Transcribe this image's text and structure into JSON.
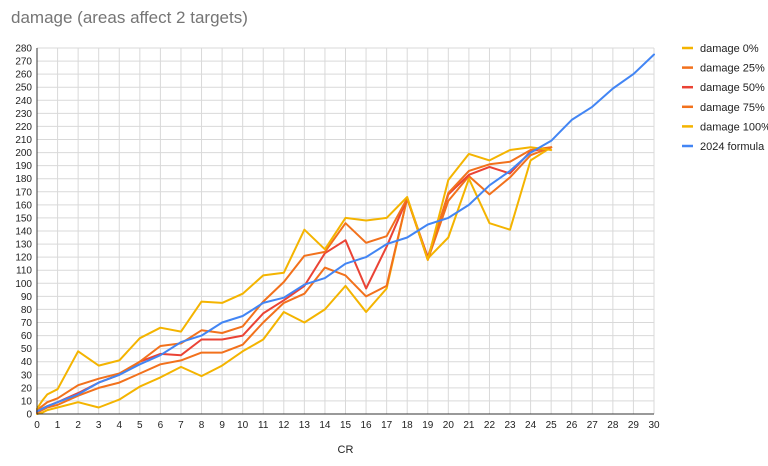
{
  "chart_data": {
    "type": "line",
    "title": "damage (areas affect 2 targets)",
    "xlabel": "CR",
    "ylabel": "",
    "xlim": [
      0,
      30
    ],
    "ylim": [
      0,
      280
    ],
    "x_ticks": [
      0,
      1,
      2,
      3,
      4,
      5,
      6,
      7,
      8,
      9,
      10,
      11,
      12,
      13,
      14,
      15,
      16,
      17,
      18,
      19,
      20,
      21,
      22,
      23,
      24,
      25,
      26,
      27,
      28,
      29,
      30
    ],
    "y_ticks": [
      0,
      10,
      20,
      30,
      40,
      50,
      60,
      70,
      80,
      90,
      100,
      110,
      120,
      130,
      140,
      150,
      160,
      170,
      180,
      190,
      200,
      210,
      220,
      230,
      240,
      250,
      260,
      270,
      280
    ],
    "grid": true,
    "legend_position": "right",
    "series": [
      {
        "name": "damage 0%",
        "color": "#f4b400",
        "x": [
          0,
          0.25,
          0.5,
          1,
          2,
          3,
          4,
          5,
          6,
          7,
          8,
          9,
          10,
          11,
          12,
          13,
          14,
          15,
          16,
          17,
          18,
          19,
          20,
          21,
          22,
          23,
          24,
          25
        ],
        "values": [
          0,
          1,
          3,
          5,
          9,
          5,
          11,
          21,
          28,
          36,
          29,
          37,
          48,
          57,
          78,
          70,
          80,
          98,
          78,
          96,
          165,
          119,
          135,
          180,
          146,
          141,
          194,
          204
        ]
      },
      {
        "name": "damage 25%",
        "color": "#f2711c",
        "x": [
          0,
          0.25,
          0.5,
          1,
          2,
          3,
          4,
          5,
          6,
          7,
          8,
          9,
          10,
          11,
          12,
          13,
          14,
          15,
          16,
          17,
          18,
          19,
          20,
          21,
          22,
          23,
          24,
          25
        ],
        "values": [
          1,
          3,
          5,
          7,
          14,
          20,
          24,
          31,
          38,
          41,
          47,
          47,
          53,
          70,
          85,
          92,
          112,
          106,
          90,
          98,
          165,
          118,
          163,
          182,
          168,
          181,
          198,
          204
        ]
      },
      {
        "name": "damage 50%",
        "color": "#ea4335",
        "x": [
          0,
          0.25,
          0.5,
          1,
          2,
          3,
          4,
          5,
          6,
          7,
          8,
          9,
          10,
          11,
          12,
          13,
          14,
          15,
          16,
          17,
          18,
          19,
          20,
          21,
          22,
          23,
          24,
          25
        ],
        "values": [
          2,
          4,
          6,
          9,
          16,
          24,
          30,
          40,
          46,
          45,
          57,
          57,
          60,
          77,
          87,
          98,
          123,
          133,
          96,
          128,
          165,
          120,
          168,
          183,
          189,
          184,
          201,
          204
        ]
      },
      {
        "name": "damage 75%",
        "color": "#f2711c",
        "x": [
          0,
          0.25,
          0.5,
          1,
          2,
          3,
          4,
          5,
          6,
          7,
          8,
          9,
          10,
          11,
          12,
          13,
          14,
          15,
          16,
          17,
          18,
          19,
          20,
          21,
          22,
          23,
          24,
          25
        ],
        "values": [
          3,
          6,
          9,
          12,
          22,
          27,
          31,
          40,
          52,
          54,
          64,
          62,
          67,
          86,
          101,
          121,
          124,
          146,
          131,
          136,
          165,
          118,
          169,
          186,
          191,
          193,
          202,
          204
        ]
      },
      {
        "name": "damage 100%",
        "color": "#f4b400",
        "x": [
          0,
          0.25,
          0.5,
          1,
          2,
          3,
          4,
          5,
          6,
          7,
          8,
          9,
          10,
          11,
          12,
          13,
          14,
          15,
          16,
          17,
          18,
          19,
          20,
          21,
          22,
          23,
          24,
          25
        ],
        "values": [
          4,
          10,
          15,
          19,
          48,
          37,
          41,
          58,
          66,
          63,
          86,
          85,
          92,
          106,
          108,
          141,
          126,
          150,
          148,
          150,
          166,
          118,
          179,
          199,
          194,
          202,
          204,
          202
        ]
      },
      {
        "name": "2024 formula",
        "color": "#4285f4",
        "x": [
          0,
          0.25,
          0.5,
          1,
          2,
          3,
          4,
          5,
          6,
          7,
          8,
          9,
          10,
          11,
          12,
          13,
          14,
          15,
          16,
          17,
          18,
          19,
          20,
          21,
          22,
          23,
          24,
          25,
          26,
          27,
          28,
          29,
          30
        ],
        "values": [
          2,
          4,
          6,
          9,
          15,
          24,
          30,
          38,
          45,
          55,
          60,
          70,
          75,
          85,
          89,
          99,
          104,
          115,
          120,
          130,
          135,
          145,
          150,
          160,
          175,
          186,
          200,
          209,
          225,
          235,
          249,
          260,
          275
        ]
      }
    ]
  }
}
